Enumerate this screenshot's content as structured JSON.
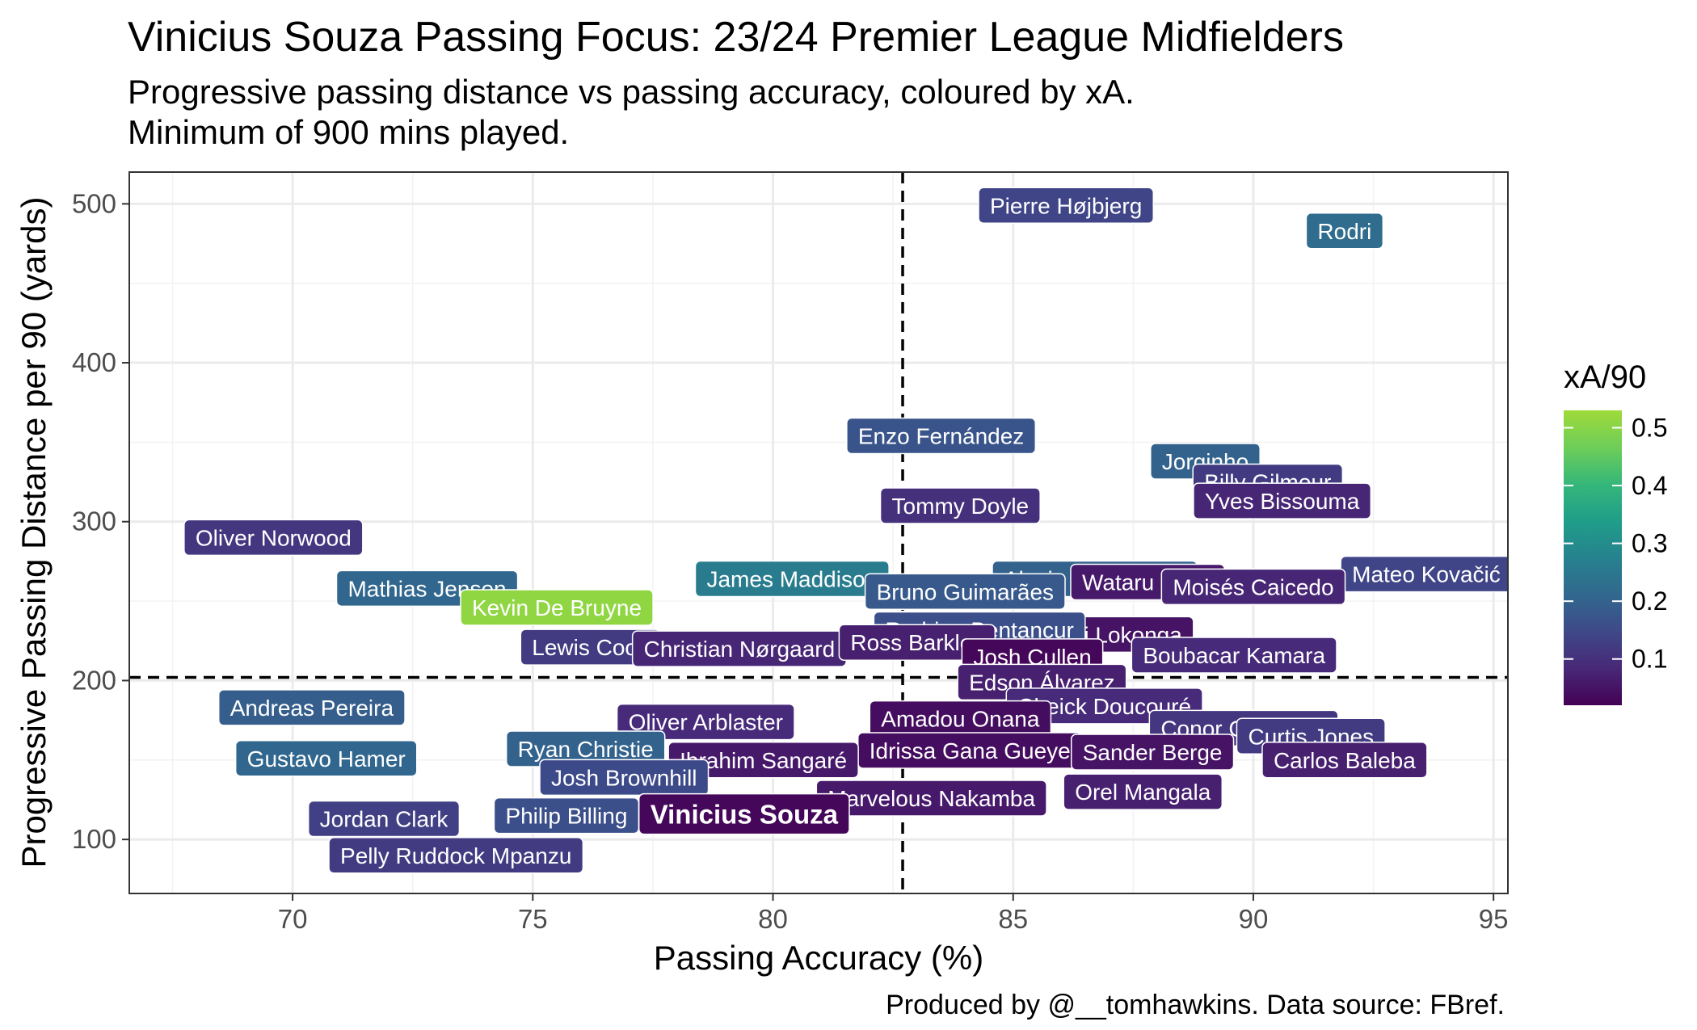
{
  "chart_data": {
    "type": "scatter",
    "title": "Vinicius Souza Passing Focus: 23/24 Premier League Midfielders",
    "subtitle": [
      "Progressive passing distance vs passing accuracy, coloured by xA.",
      "Minimum of 900 mins played."
    ],
    "caption": "Produced by @__tomhawkins. Data source: FBref.",
    "xlabel": "Passing Accuracy (%)",
    "ylabel": "Progressive Passing Distance per 90 (yards)",
    "xlim": [
      66.6,
      95.3
    ],
    "ylim": [
      66,
      520
    ],
    "x_ticks": [
      70,
      75,
      80,
      85,
      90,
      95
    ],
    "y_ticks": [
      100,
      200,
      300,
      400,
      500
    ],
    "reference_lines": {
      "x": 82.7,
      "y": 202
    },
    "grid": true,
    "color_scale": {
      "name": "xA/90",
      "type": "viridis",
      "min": 0.02,
      "max": 0.53,
      "ticks": [
        0.1,
        0.2,
        0.3,
        0.4,
        0.5
      ]
    },
    "highlight": "Vinicius Souza",
    "points": [
      {
        "name": "Pierre Højbjerg",
        "x": 86.1,
        "y": 499,
        "xa": 0.14
      },
      {
        "name": "Rodri",
        "x": 91.9,
        "y": 483,
        "xa": 0.22
      },
      {
        "name": "Enzo Fernández",
        "x": 83.5,
        "y": 354,
        "xa": 0.17
      },
      {
        "name": "Jorginho",
        "x": 89.0,
        "y": 338,
        "xa": 0.2
      },
      {
        "name": "Billy Gilmour",
        "x": 90.3,
        "y": 325,
        "xa": 0.12
      },
      {
        "name": "Yves Bissouma",
        "x": 90.6,
        "y": 313,
        "xa": 0.08
      },
      {
        "name": "Tommy Doyle",
        "x": 83.9,
        "y": 310,
        "xa": 0.1
      },
      {
        "name": "Oliver Norwood",
        "x": 69.6,
        "y": 290,
        "xa": 0.11
      },
      {
        "name": "Mateo Kovačić",
        "x": 93.6,
        "y": 267,
        "xa": 0.14
      },
      {
        "name": "James Maddison",
        "x": 80.4,
        "y": 264,
        "xa": 0.26
      },
      {
        "name": "Alexis Mac Allister",
        "x": 86.7,
        "y": 264,
        "xa": 0.2
      },
      {
        "name": "Wataru Endo",
        "x": 87.8,
        "y": 262,
        "xa": 0.06
      },
      {
        "name": "Moisés Caicedo",
        "x": 90.0,
        "y": 259,
        "xa": 0.08
      },
      {
        "name": "Mathias Jensen",
        "x": 72.8,
        "y": 258,
        "xa": 0.21
      },
      {
        "name": "Bruno Guimarães",
        "x": 84.0,
        "y": 256,
        "xa": 0.18
      },
      {
        "name": "Kevin De Bruyne",
        "x": 75.5,
        "y": 246,
        "xa": 0.51
      },
      {
        "name": "Albert Sambi Lokonga",
        "x": 86.2,
        "y": 229,
        "xa": 0.05
      },
      {
        "name": "Rodrigo Bentancur",
        "x": 84.3,
        "y": 232,
        "xa": 0.16
      },
      {
        "name": "Lewis Cook",
        "x": 76.2,
        "y": 221,
        "xa": 0.12
      },
      {
        "name": "Christian Nørgaard",
        "x": 79.3,
        "y": 220,
        "xa": 0.08
      },
      {
        "name": "Ross Barkley",
        "x": 83.0,
        "y": 224,
        "xa": 0.07
      },
      {
        "name": "Boubacar Kamara",
        "x": 89.6,
        "y": 216,
        "xa": 0.09
      },
      {
        "name": "Josh Cullen",
        "x": 85.4,
        "y": 215,
        "xa": 0.03
      },
      {
        "name": "Edson Álvarez",
        "x": 85.6,
        "y": 199,
        "xa": 0.07
      },
      {
        "name": "Andreas Pereira",
        "x": 70.4,
        "y": 183,
        "xa": 0.19
      },
      {
        "name": "Cheick Doucouré",
        "x": 86.9,
        "y": 184,
        "xa": 0.09
      },
      {
        "name": "Amadou Onana",
        "x": 83.9,
        "y": 176,
        "xa": 0.04
      },
      {
        "name": "Oliver Arblaster",
        "x": 78.6,
        "y": 174,
        "xa": 0.09
      },
      {
        "name": "Conor Gallagher",
        "x": 89.8,
        "y": 170,
        "xa": 0.11
      },
      {
        "name": "Curtis Jones",
        "x": 91.2,
        "y": 165,
        "xa": 0.12
      },
      {
        "name": "Gustavo Hamer",
        "x": 70.7,
        "y": 151,
        "xa": 0.21
      },
      {
        "name": "Ryan Christie",
        "x": 76.1,
        "y": 157,
        "xa": 0.2
      },
      {
        "name": "Idrissa Gana Gueye",
        "x": 84.1,
        "y": 156,
        "xa": 0.04
      },
      {
        "name": "Sander Berge",
        "x": 87.9,
        "y": 155,
        "xa": 0.05
      },
      {
        "name": "Carlos Baleba",
        "x": 91.9,
        "y": 150,
        "xa": 0.07
      },
      {
        "name": "Ibrahim Sangaré",
        "x": 79.8,
        "y": 150,
        "xa": 0.06
      },
      {
        "name": "Josh Brownhill",
        "x": 76.9,
        "y": 139,
        "xa": 0.15
      },
      {
        "name": "Marvelous Nakamba",
        "x": 83.3,
        "y": 126,
        "xa": 0.06
      },
      {
        "name": "Orel Mangala",
        "x": 87.7,
        "y": 130,
        "xa": 0.07
      },
      {
        "name": "Jordan Clark",
        "x": 71.9,
        "y": 113,
        "xa": 0.13
      },
      {
        "name": "Philip Billing",
        "x": 75.7,
        "y": 115,
        "xa": 0.16
      },
      {
        "name": "Vinicius Souza",
        "x": 79.4,
        "y": 116,
        "xa": 0.03
      },
      {
        "name": "Pelly Ruddock Mpanzu",
        "x": 73.4,
        "y": 90,
        "xa": 0.12
      }
    ]
  }
}
